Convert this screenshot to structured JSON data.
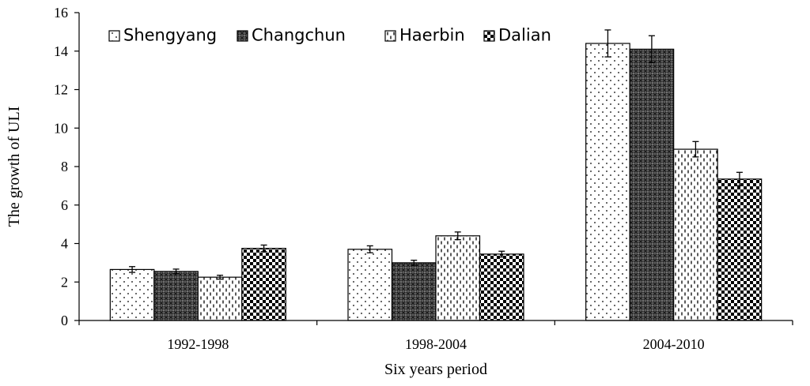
{
  "chart_data": {
    "type": "bar",
    "title": "",
    "xlabel": "Six years period",
    "ylabel": "The growth of ULI",
    "ylim": [
      0,
      16
    ],
    "yticks": [
      "0",
      "2",
      "4",
      "6",
      "8",
      "10",
      "12",
      "14",
      "16"
    ],
    "categories": [
      "1992-1998",
      "1998-2004",
      "2004-2010"
    ],
    "legend_position": "top-left",
    "grid": false,
    "series": [
      {
        "name": "Shengyang",
        "values": [
          2.65,
          3.7,
          14.4
        ],
        "errors": [
          0.15,
          0.18,
          0.7
        ],
        "pattern": "dots"
      },
      {
        "name": "Changchun",
        "values": [
          2.55,
          3.0,
          14.1
        ],
        "errors": [
          0.12,
          0.13,
          0.7
        ],
        "pattern": "cross"
      },
      {
        "name": "Haerbin",
        "values": [
          2.25,
          4.4,
          8.9
        ],
        "errors": [
          0.1,
          0.2,
          0.4
        ],
        "pattern": "dashes"
      },
      {
        "name": "Dalian",
        "values": [
          3.75,
          3.45,
          7.35
        ],
        "errors": [
          0.17,
          0.15,
          0.35
        ],
        "pattern": "checker"
      }
    ]
  }
}
